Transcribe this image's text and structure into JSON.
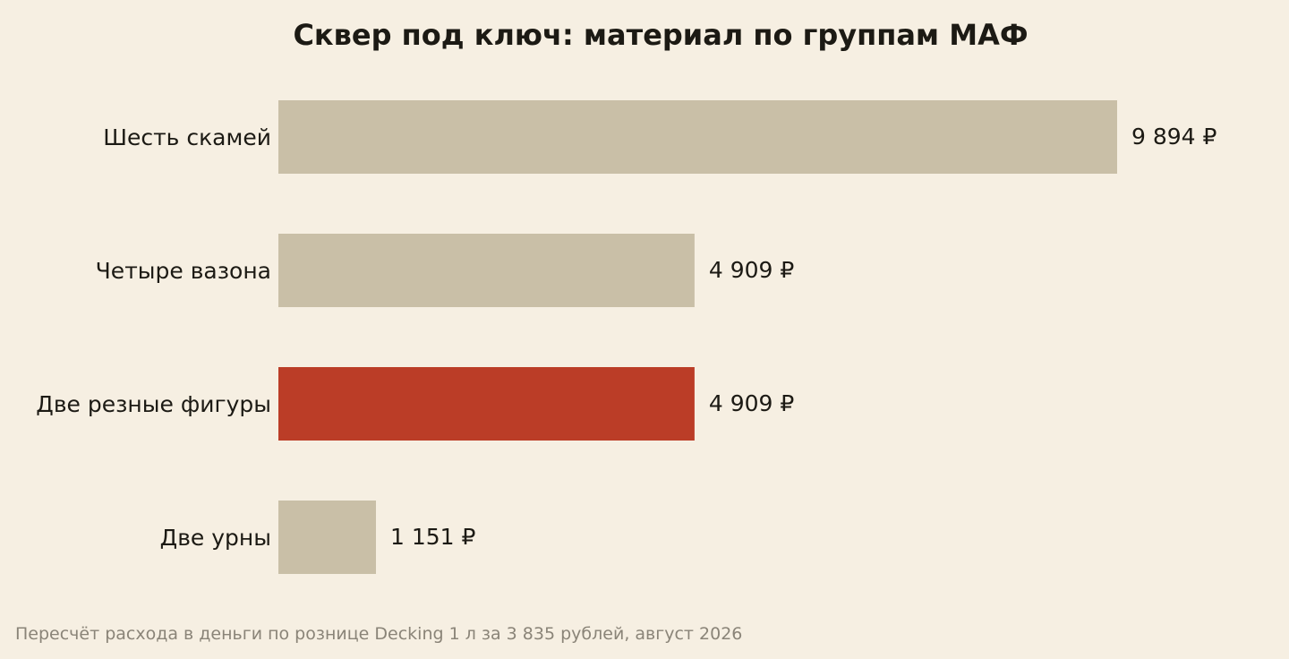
{
  "colors": {
    "background": "#f6efe2",
    "bar_default": "#c9bfa7",
    "bar_highlight": "#bb3d27",
    "text": "#1c1a14",
    "footnote_text": "#8a8478"
  },
  "chart_data": {
    "type": "bar",
    "orientation": "horizontal",
    "title": "Сквер под ключ: материал по группам МАФ",
    "xlabel": "",
    "ylabel": "",
    "grid": false,
    "legend": "none",
    "categories": [
      "Шесть скамей",
      "Четыре вазона",
      "Две резные фигуры",
      "Две урны"
    ],
    "values": [
      9894,
      4909,
      4909,
      1151
    ],
    "value_labels": [
      "9 894 ₽",
      "4 909 ₽",
      "4 909 ₽",
      "1 151 ₽"
    ],
    "highlight_index": 2,
    "xlim": [
      0,
      9894
    ]
  },
  "footnote": "Пересчёт расхода в деньги по рознице Decking 1 л за 3 835 рублей, август 2026"
}
